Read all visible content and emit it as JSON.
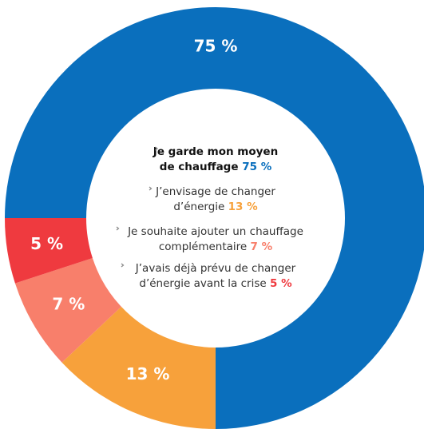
{
  "chart_data": {
    "type": "donut",
    "categories": [
      "Je garde mon moyen de chauffage",
      "J’envisage de changer d’énergie",
      "Je souhaite ajouter un chauffage complémentaire",
      "J’avais déjà prévu de changer d’énergie avant la crise"
    ],
    "values": [
      75,
      13,
      7,
      5
    ],
    "value_labels": [
      "75 %",
      "13 %",
      "7 %",
      "5 %"
    ],
    "colors": [
      "#0a6fbd",
      "#f7a13b",
      "#f87f6b",
      "#ef3a3f"
    ]
  }
}
